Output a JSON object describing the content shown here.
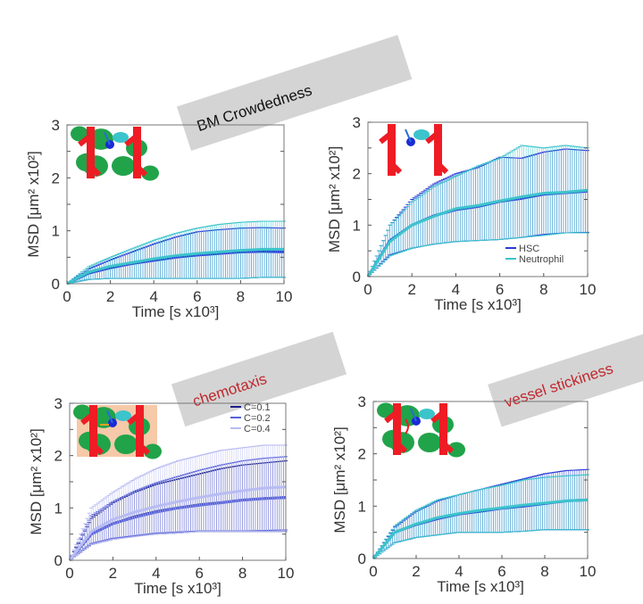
{
  "labels": {
    "bm": "BM Crowdedness",
    "chem": "chemotaxis",
    "vessel": "vessel stickiness"
  },
  "label_colors": {
    "bm": "#111111",
    "chem": "#c0282d",
    "vessel": "#c0282d"
  },
  "chart_data": [
    {
      "type": "line",
      "xlabel": "Time [s x10³]",
      "ylabel": "MSD [μm² x10²]",
      "xlim": [
        0,
        10
      ],
      "ylim": [
        0,
        3
      ],
      "xticks": [
        "0",
        "2",
        "4",
        "6",
        "8",
        "10"
      ],
      "yticks": [
        "0",
        "1",
        "2",
        "3"
      ],
      "error_bars": true,
      "x": [
        0,
        1,
        2,
        3,
        4,
        5,
        6,
        7,
        8,
        9,
        10
      ],
      "series": [
        {
          "color": "#2a3bd6",
          "mean": [
            0,
            0.2,
            0.3,
            0.38,
            0.44,
            0.5,
            0.54,
            0.57,
            0.6,
            0.61,
            0.6
          ],
          "upper": [
            0,
            0.28,
            0.45,
            0.6,
            0.75,
            0.88,
            0.98,
            1.02,
            1.05,
            1.06,
            1.05
          ],
          "lower": [
            0,
            0.08,
            0.1,
            0.1,
            0.1,
            0.1,
            0.1,
            0.1,
            0.1,
            0.12,
            0.12
          ]
        },
        {
          "color": "#3cc4cc",
          "mean": [
            0,
            0.22,
            0.33,
            0.4,
            0.47,
            0.53,
            0.57,
            0.6,
            0.63,
            0.65,
            0.65
          ],
          "upper": [
            0,
            0.32,
            0.5,
            0.66,
            0.82,
            0.95,
            1.05,
            1.12,
            1.16,
            1.18,
            1.18
          ],
          "lower": [
            0,
            0.08,
            0.1,
            0.1,
            0.1,
            0.1,
            0.1,
            0.1,
            0.1,
            0.12,
            0.12
          ]
        }
      ]
    },
    {
      "type": "line",
      "xlabel": "Time [s x10³]",
      "ylabel": "MSD [μm² x10²]",
      "xlim": [
        0,
        10
      ],
      "ylim": [
        0,
        3
      ],
      "xticks": [
        "0",
        "2",
        "4",
        "6",
        "8",
        "10"
      ],
      "yticks": [
        "0",
        "1",
        "2",
        "3"
      ],
      "error_bars": true,
      "legend": "bottom-right",
      "x": [
        0,
        1,
        2,
        3,
        4,
        5,
        6,
        7,
        8,
        9,
        10
      ],
      "series": [
        {
          "name": "HSC",
          "color": "#2a3bd6",
          "mean": [
            0,
            0.7,
            1.0,
            1.18,
            1.3,
            1.36,
            1.46,
            1.52,
            1.6,
            1.63,
            1.66
          ],
          "upper": [
            0,
            1.0,
            1.5,
            1.8,
            2.0,
            2.12,
            2.32,
            2.3,
            2.42,
            2.48,
            2.45
          ],
          "lower": [
            0,
            0.42,
            0.55,
            0.63,
            0.68,
            0.7,
            0.72,
            0.76,
            0.82,
            0.85,
            0.86
          ]
        },
        {
          "name": "Neutrophil",
          "color": "#3cc4cc",
          "mean": [
            0,
            0.68,
            1.0,
            1.17,
            1.32,
            1.38,
            1.47,
            1.55,
            1.62,
            1.64,
            1.68
          ],
          "upper": [
            0,
            1.0,
            1.45,
            1.75,
            1.95,
            2.15,
            2.3,
            2.55,
            2.5,
            2.55,
            2.5
          ],
          "lower": [
            0,
            0.4,
            0.55,
            0.63,
            0.68,
            0.7,
            0.72,
            0.76,
            0.8,
            0.85,
            0.85
          ]
        }
      ]
    },
    {
      "type": "line",
      "xlabel": "Time [s x10³]",
      "ylabel": "MSD [μm² x10²]",
      "xlim": [
        0,
        10
      ],
      "ylim": [
        0,
        3
      ],
      "xticks": [
        "0",
        "2",
        "4",
        "6",
        "8",
        "10"
      ],
      "yticks": [
        "0",
        "1",
        "2",
        "3"
      ],
      "error_bars": true,
      "legend": "top-right",
      "x": [
        0,
        1,
        2,
        3,
        4,
        5,
        6,
        7,
        8,
        9,
        10
      ],
      "series": [
        {
          "name": "C=0.1",
          "color": "#1a1f8a",
          "mean": [
            0,
            0.5,
            0.7,
            0.83,
            0.93,
            1.0,
            1.06,
            1.1,
            1.15,
            1.18,
            1.2
          ],
          "upper": [
            0,
            0.8,
            1.1,
            1.3,
            1.45,
            1.55,
            1.65,
            1.75,
            1.82,
            1.86,
            1.9
          ],
          "lower": [
            0,
            0.3,
            0.4,
            0.46,
            0.5,
            0.52,
            0.55,
            0.55,
            0.55,
            0.55,
            0.55
          ]
        },
        {
          "name": "C=0.2",
          "color": "#5560d8",
          "mean": [
            0,
            0.5,
            0.7,
            0.82,
            0.92,
            1.0,
            1.05,
            1.1,
            1.15,
            1.18,
            1.2
          ],
          "upper": [
            0,
            0.85,
            1.12,
            1.32,
            1.48,
            1.6,
            1.72,
            1.82,
            1.9,
            1.95,
            1.98
          ],
          "lower": [
            0,
            0.32,
            0.42,
            0.47,
            0.52,
            0.54,
            0.56,
            0.56,
            0.56,
            0.57,
            0.58
          ]
        },
        {
          "name": "C=0.4",
          "color": "#b8bcf2",
          "mean": [
            0,
            0.55,
            0.78,
            0.92,
            1.03,
            1.12,
            1.2,
            1.27,
            1.33,
            1.38,
            1.4
          ],
          "upper": [
            0,
            1.0,
            1.3,
            1.55,
            1.75,
            1.9,
            2.0,
            2.1,
            2.15,
            2.2,
            2.2
          ],
          "lower": [
            0,
            0.3,
            0.4,
            0.45,
            0.5,
            0.52,
            0.55,
            0.55,
            0.55,
            0.55,
            0.55
          ]
        }
      ]
    },
    {
      "type": "line",
      "xlabel": "Time [s x10³]",
      "ylabel": "MSD [μm² x10²]",
      "xlim": [
        0,
        10
      ],
      "ylim": [
        0,
        3
      ],
      "xticks": [
        "0",
        "2",
        "4",
        "6",
        "8",
        "10"
      ],
      "yticks": [
        "0",
        "1",
        "2",
        "3"
      ],
      "error_bars": true,
      "x": [
        0,
        1,
        2,
        3,
        4,
        5,
        6,
        7,
        8,
        9,
        10
      ],
      "series": [
        {
          "color": "#2a3bd6",
          "mean": [
            0,
            0.5,
            0.65,
            0.76,
            0.85,
            0.9,
            0.96,
            1.0,
            1.05,
            1.1,
            1.12
          ],
          "upper": [
            0,
            0.6,
            0.9,
            1.1,
            1.22,
            1.32,
            1.42,
            1.52,
            1.62,
            1.68,
            1.7
          ],
          "lower": [
            0,
            0.3,
            0.4,
            0.45,
            0.5,
            0.5,
            0.5,
            0.52,
            0.55,
            0.55,
            0.55
          ]
        },
        {
          "color": "#3cc4cc",
          "mean": [
            0,
            0.5,
            0.66,
            0.78,
            0.86,
            0.92,
            0.97,
            1.02,
            1.06,
            1.1,
            1.12
          ],
          "upper": [
            0,
            0.62,
            0.92,
            1.12,
            1.22,
            1.32,
            1.4,
            1.5,
            1.55,
            1.58,
            1.6
          ],
          "lower": [
            0,
            0.3,
            0.4,
            0.45,
            0.5,
            0.5,
            0.5,
            0.52,
            0.55,
            0.55,
            0.55
          ]
        }
      ]
    }
  ]
}
